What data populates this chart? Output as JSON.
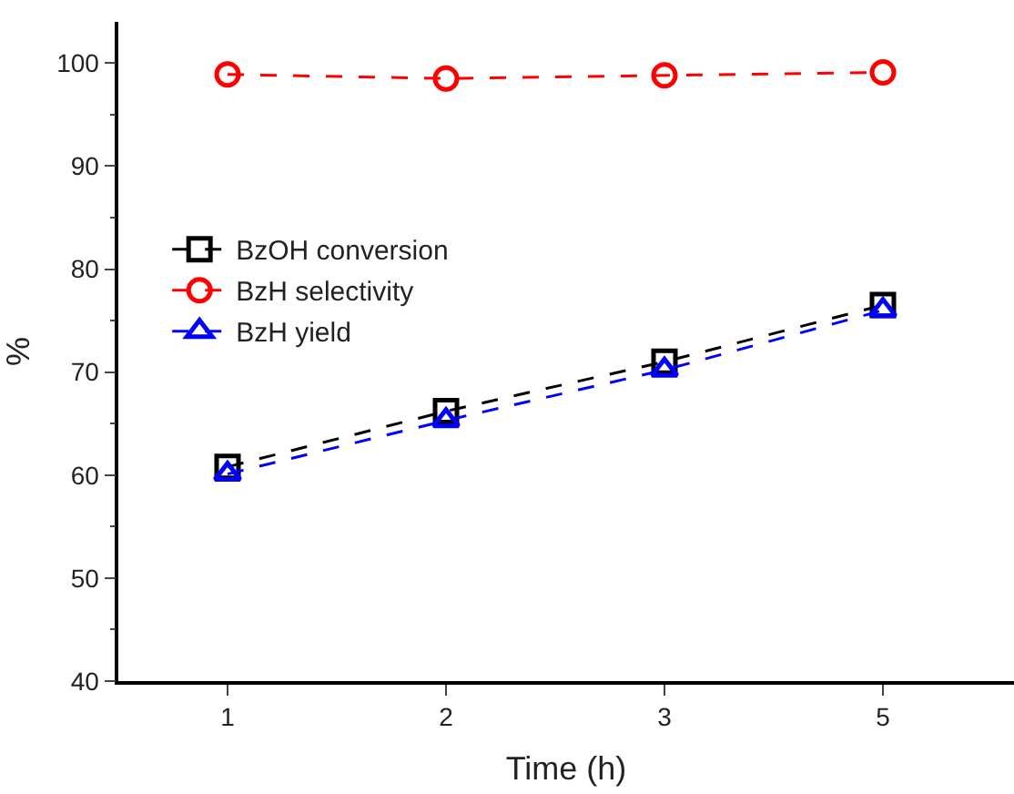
{
  "chart_data": {
    "type": "line",
    "xlabel": "Time (h)",
    "ylabel": "%",
    "categories": [
      "1",
      "2",
      "3",
      "5"
    ],
    "ylim": [
      40,
      104
    ],
    "yticks": [
      40,
      50,
      60,
      70,
      80,
      90,
      100
    ],
    "legend": "top left",
    "line_style": "dashed",
    "series": [
      {
        "name": "BzOH conversion",
        "color": "#000000",
        "marker": "square",
        "values": [
          60.8,
          66.2,
          71.0,
          76.5
        ]
      },
      {
        "name": "BzH selectivity",
        "color": "#ff0000",
        "marker": "circle",
        "values": [
          98.9,
          98.5,
          98.8,
          99.1
        ]
      },
      {
        "name": "BzH yield",
        "color": "#0000ff",
        "marker": "triangle",
        "values": [
          60.1,
          65.3,
          70.2,
          76.0
        ]
      }
    ]
  }
}
